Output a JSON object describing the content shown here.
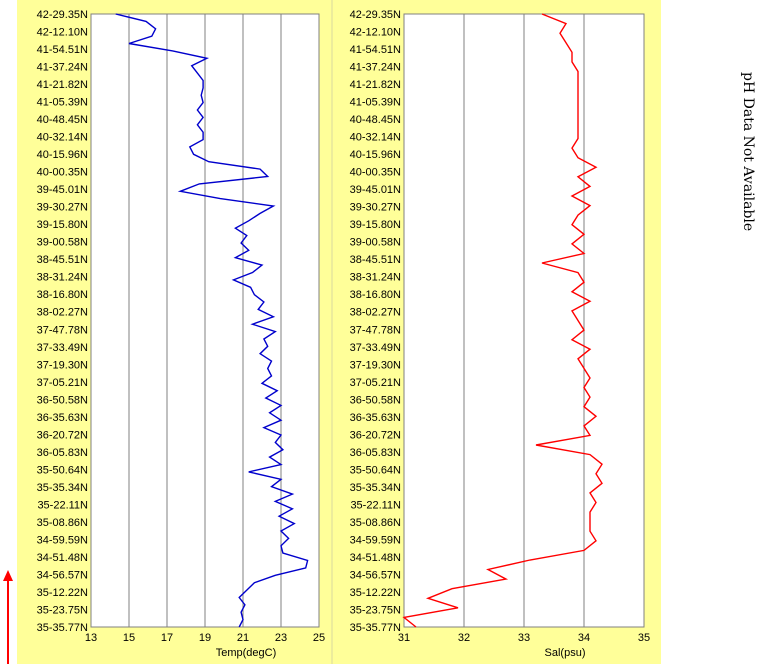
{
  "chart_data": [
    {
      "type": "line",
      "xlabel": "Temp(degC)",
      "xlim": [
        13,
        25
      ],
      "xticks": [
        "13",
        "15",
        "17",
        "19",
        "21",
        "23",
        "25"
      ],
      "ylabels": [
        "42-29.35N",
        "42-12.10N",
        "41-54.51N",
        "41-37.24N",
        "41-21.82N",
        "41-05.39N",
        "40-48.45N",
        "40-32.14N",
        "40-15.96N",
        "40-00.35N",
        "39-45.01N",
        "39-30.27N",
        "39-15.80N",
        "39-00.58N",
        "38-45.51N",
        "38-31.24N",
        "38-16.80N",
        "38-02.27N",
        "37-47.78N",
        "37-33.49N",
        "37-19.30N",
        "37-05.21N",
        "36-50.58N",
        "36-35.63N",
        "36-20.72N",
        "36-05.83N",
        "35-50.64N",
        "35-35.34N",
        "35-22.11N",
        "35-08.86N",
        "34-59.59N",
        "34-51.48N",
        "34-56.57N",
        "35-12.22N",
        "35-23.75N",
        "35-35.77N"
      ],
      "color": "#0000cc",
      "series": [
        {
          "values": [
            14.3,
            15.9,
            16.4,
            16.2,
            15.0,
            17.3,
            19.1,
            18.3,
            18.6,
            18.9,
            18.9,
            18.8,
            18.9,
            18.6,
            18.9,
            18.6,
            18.9,
            18.9,
            18.2,
            18.4,
            19.2,
            21.9,
            22.3,
            18.7,
            17.7,
            19.8,
            22.6,
            21.9,
            21.3,
            20.6,
            21.2,
            20.9,
            21.3,
            20.6,
            22.0,
            21.5,
            20.5,
            21.4,
            21.6,
            22.1,
            21.8,
            22.6,
            21.5,
            22.7,
            22.1,
            22.3,
            21.9,
            22.5,
            22.3,
            22.5,
            22.0,
            22.8,
            22.2,
            23.0,
            22.4,
            23.0,
            22.1,
            23.0,
            22.7,
            23.1,
            22.4,
            23.0,
            21.3,
            23.0,
            22.5,
            23.6,
            22.7,
            23.6,
            22.9,
            23.7,
            23.0,
            23.4,
            23.0,
            23.1,
            24.4,
            24.3,
            22.7,
            21.6,
            21.2,
            20.8,
            21.1,
            20.9,
            21.0,
            20.8
          ],
          "points_count_note": ""
        }
      ]
    },
    {
      "type": "line",
      "xlabel": "Sal(psu)",
      "xlim": [
        31,
        35
      ],
      "xticks": [
        "31",
        "32",
        "33",
        "34",
        "35"
      ],
      "ylabels": [
        "42-29.35N",
        "42-12.10N",
        "41-54.51N",
        "41-37.24N",
        "41-21.82N",
        "41-05.39N",
        "40-48.45N",
        "40-32.14N",
        "40-15.96N",
        "40-00.35N",
        "39-45.01N",
        "39-30.27N",
        "39-15.80N",
        "39-00.58N",
        "38-45.51N",
        "38-31.24N",
        "38-16.80N",
        "38-02.27N",
        "37-47.78N",
        "37-33.49N",
        "37-19.30N",
        "37-05.21N",
        "36-50.58N",
        "36-35.63N",
        "36-20.72N",
        "36-05.83N",
        "35-50.64N",
        "35-35.34N",
        "35-22.11N",
        "35-08.86N",
        "34-59.59N",
        "34-51.48N",
        "34-56.57N",
        "35-12.22N",
        "35-23.75N",
        "35-35.77N"
      ],
      "color": "#ff0000",
      "series": [
        {
          "values": [
            33.3,
            33.7,
            33.6,
            33.7,
            33.8,
            33.8,
            33.9,
            33.9,
            33.9,
            33.9,
            33.9,
            33.9,
            33.9,
            33.9,
            33.8,
            33.9,
            34.2,
            33.9,
            34.1,
            33.8,
            34.1,
            33.9,
            33.8,
            34.0,
            33.8,
            34.0,
            33.3,
            33.9,
            34.0,
            33.8,
            34.1,
            33.8,
            33.9,
            34.0,
            33.8,
            34.1,
            33.9,
            34.0,
            34.1,
            34.0,
            34.1,
            34.0,
            34.2,
            34.0,
            34.1,
            33.2,
            34.1,
            34.3,
            34.2,
            34.3,
            34.1,
            34.2,
            34.1,
            34.1,
            34.1,
            34.2,
            34.0,
            33.1,
            32.4,
            32.7,
            31.8,
            31.4,
            31.9,
            31.0,
            31.2
          ]
        }
      ]
    }
  ],
  "note": "pH Data Not Available"
}
